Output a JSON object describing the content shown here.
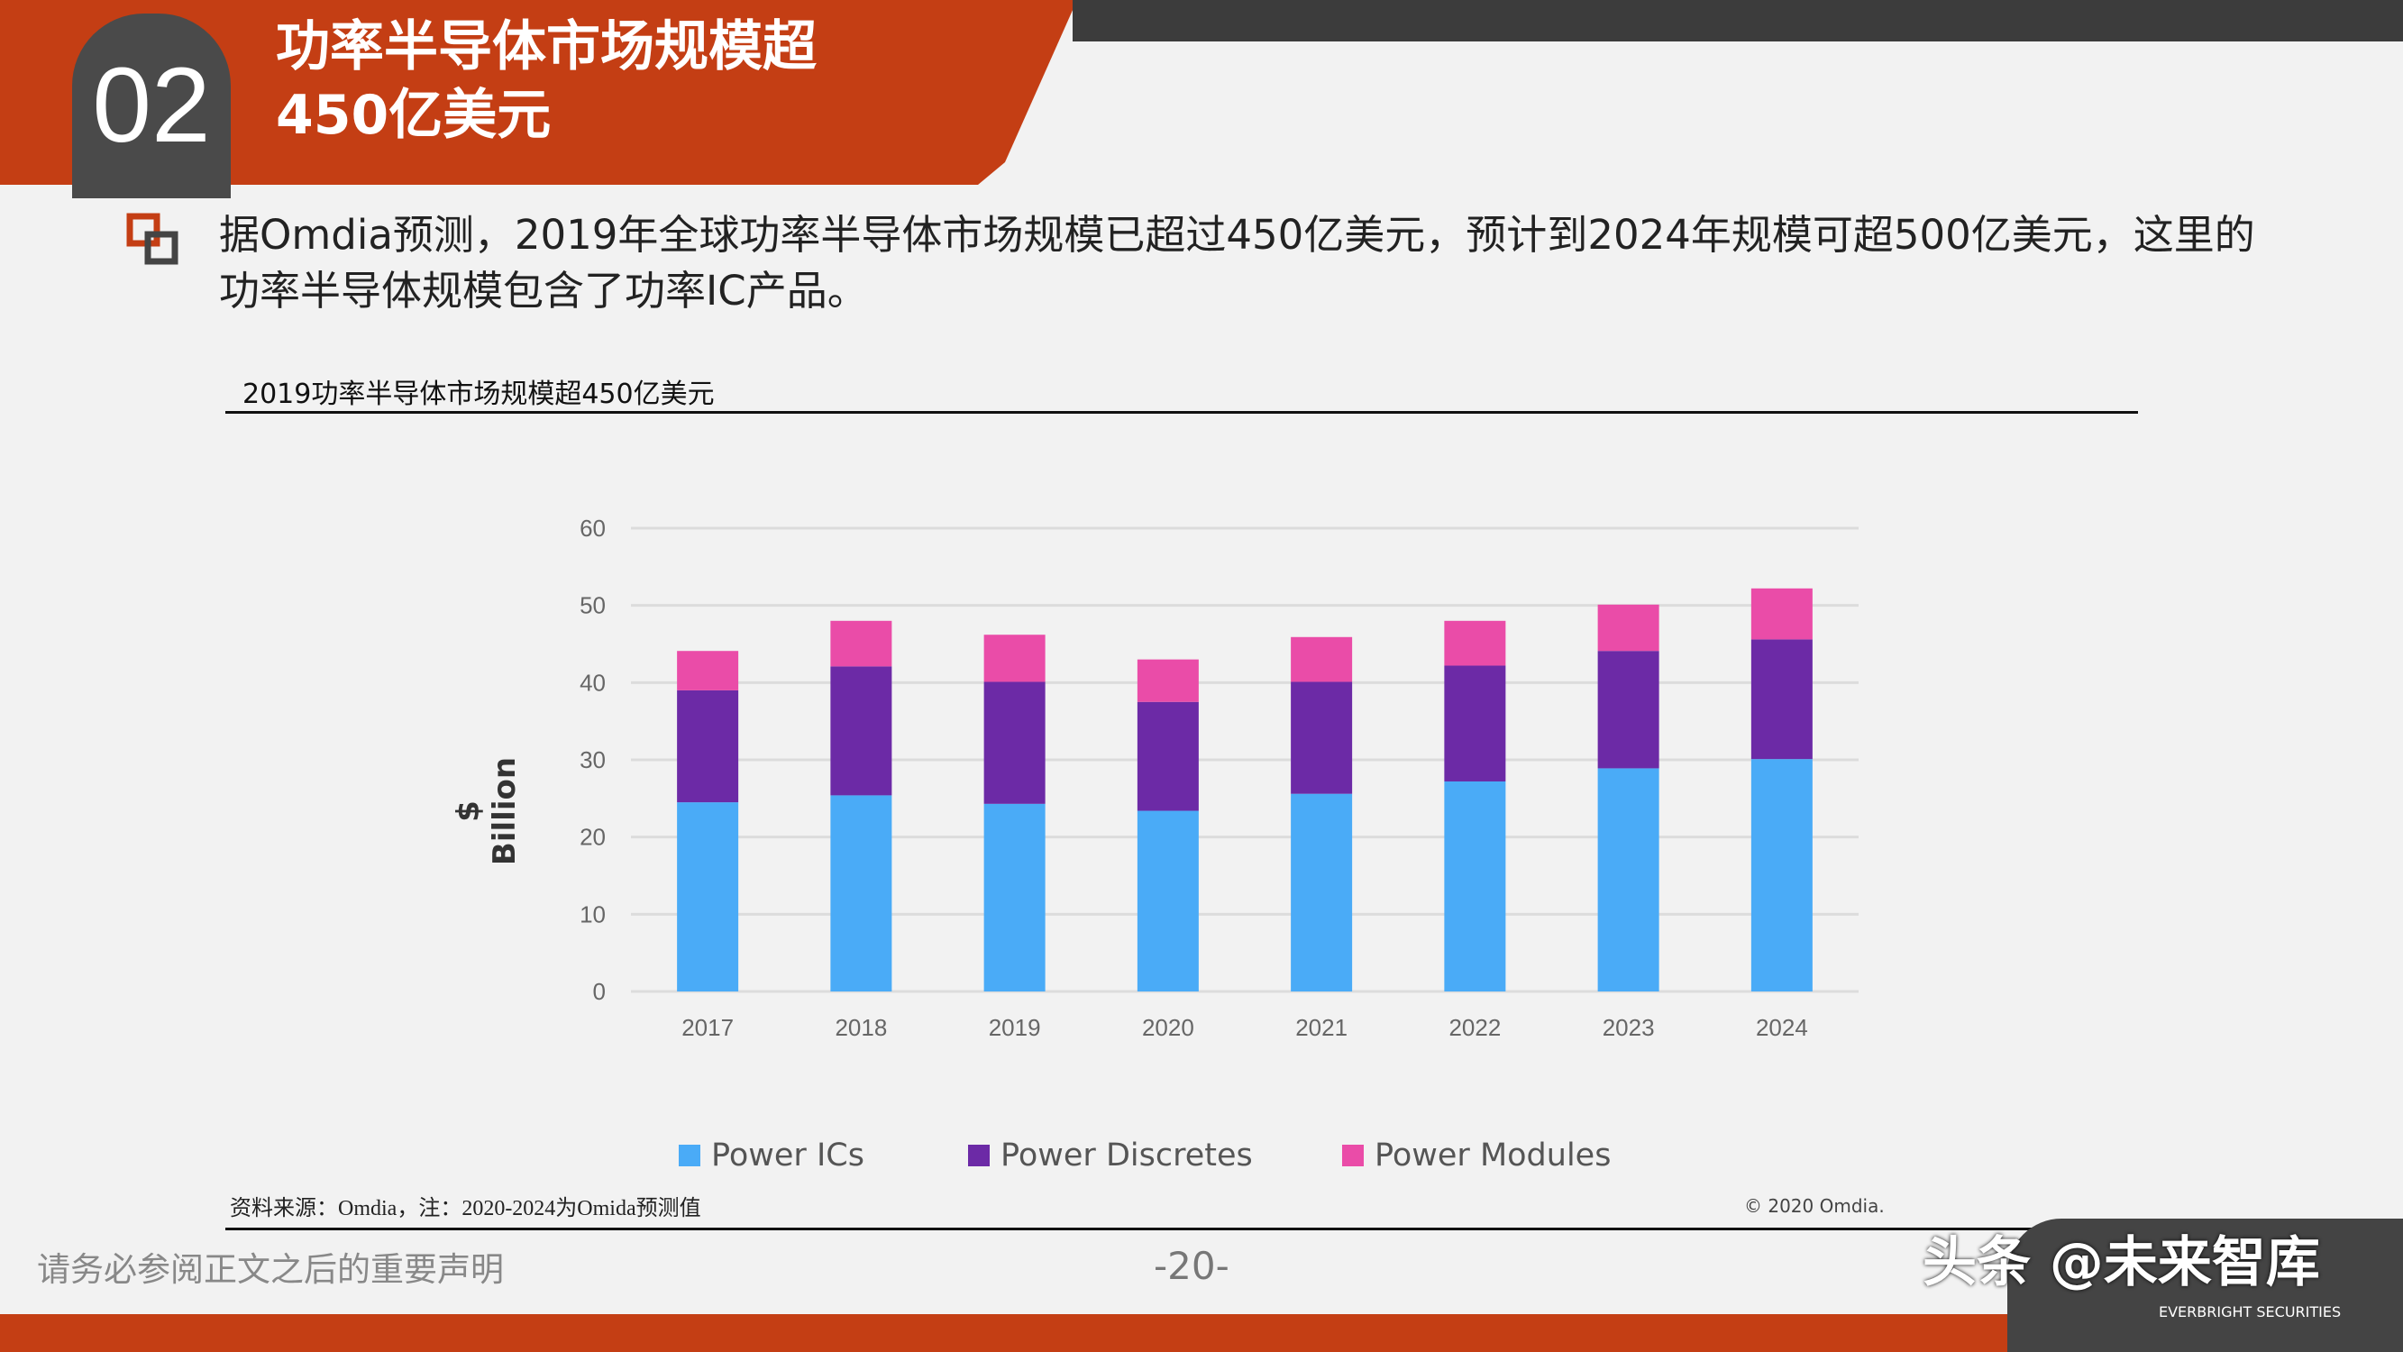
{
  "header": {
    "section_number": "02",
    "title_line1": "功率半导体市场规模超",
    "title_line2": "450亿美元"
  },
  "intro": "据Omdia预测，2019年全球功率半导体市场规模已超过450亿美元，预计到2024年规模可超500亿美元，这里的功率半导体规模包含了功率IC产品。",
  "chart_title": "2019功率半导体市场规模超450亿美元",
  "chart_data": {
    "type": "bar",
    "stacked": true,
    "categories": [
      "2017",
      "2018",
      "2019",
      "2020",
      "2021",
      "2022",
      "2023",
      "2024"
    ],
    "series": [
      {
        "name": "Power ICs",
        "color": "#4aabf7",
        "values": [
          24.5,
          25.4,
          24.3,
          23.4,
          25.6,
          27.2,
          28.9,
          30.1
        ]
      },
      {
        "name": "Power Discretes",
        "color": "#6c2aa6",
        "values": [
          14.5,
          16.7,
          15.8,
          14.1,
          14.5,
          15.0,
          15.2,
          15.5
        ]
      },
      {
        "name": "Power Modules",
        "color": "#ea4ca8",
        "values": [
          5.1,
          5.9,
          6.1,
          5.5,
          5.8,
          5.8,
          6.0,
          6.6
        ]
      }
    ],
    "ylabel": "$ Billion",
    "ylim": [
      0,
      60
    ],
    "yticks": [
      0,
      10,
      20,
      30,
      40,
      50,
      60
    ],
    "grid": true,
    "legend": "bottom"
  },
  "copyright": "© 2020 Omdia.",
  "footer": {
    "disclaimer": "请务必参阅正文之后的重要声明",
    "source": "资料来源：Omdia，注：2020-2024为Omida预测值",
    "page": "-20-",
    "watermark": "头条 @未来智库",
    "watermark_sub": "EVERBRIGHT SECURITIES"
  },
  "colors": {
    "brand_orange": "#c43e14",
    "dark": "#444444"
  }
}
